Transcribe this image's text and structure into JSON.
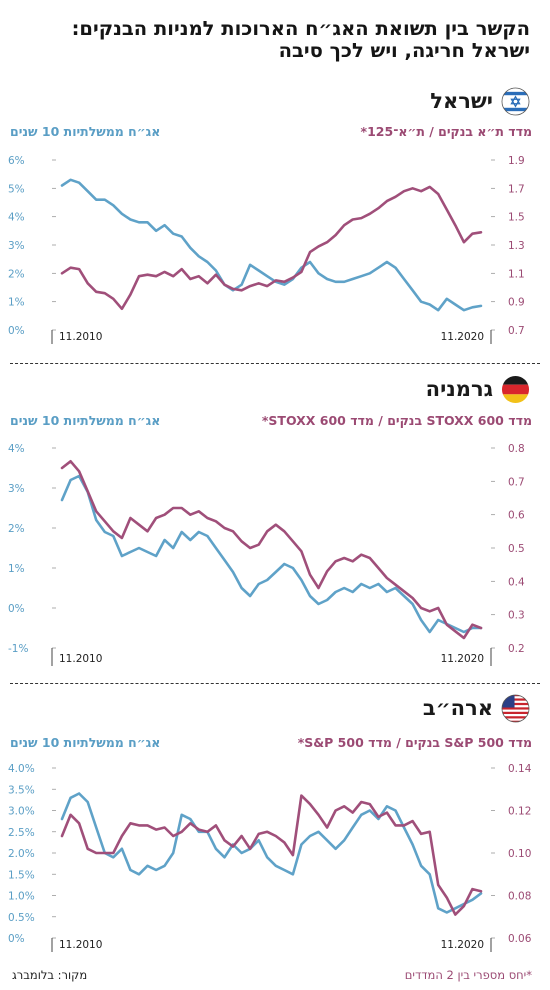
{
  "title_line1": "הקשר בין תשואת האג״ח הארוכות למניות הבנקים:",
  "title_line2": "ישראל חריגה, ויש לכך סיבה",
  "colors": {
    "bond": "#5fa2c8",
    "banks": "#a04f7a",
    "axis_right": "#9b4a73",
    "axis_left": "#5a9ec5"
  },
  "footer": {
    "source": "מקור: בלומברג",
    "note": "*יחס מספרי בין 2 המדדים"
  },
  "chart_data": [
    {
      "type": "line",
      "country": "ישראל",
      "flag_icon": "israel-flag-icon",
      "left_axis_title": "אג״ח ממשלתיות 10 שנים",
      "right_axis_title": "מדד ת״א בנקים / ת״א־125*",
      "x_start_label": "11.2010",
      "x_end_label": "11.2020",
      "left_ticks": [
        "6%",
        "5%",
        "4%",
        "3%",
        "2%",
        "1%",
        "0%"
      ],
      "left_lim": [
        0,
        6
      ],
      "right_ticks": [
        "1.9",
        "1.7",
        "1.5",
        "1.3",
        "1.1",
        "0.9",
        "0.7"
      ],
      "right_lim": [
        0.7,
        1.9
      ],
      "series": [
        {
          "axis": "left",
          "color": "bond",
          "values": [
            5.1,
            5.3,
            5.2,
            4.9,
            4.6,
            4.6,
            4.4,
            4.1,
            3.9,
            3.8,
            3.8,
            3.5,
            3.7,
            3.4,
            3.3,
            2.9,
            2.6,
            2.4,
            2.1,
            1.6,
            1.4,
            1.6,
            2.3,
            2.1,
            1.9,
            1.7,
            1.6,
            1.8,
            2.2,
            2.4,
            2.0,
            1.8,
            1.7,
            1.7,
            1.8,
            1.9,
            2.0,
            2.2,
            2.4,
            2.2,
            1.8,
            1.4,
            1.0,
            0.9,
            0.7,
            1.1,
            0.9,
            0.7,
            0.8,
            0.85
          ]
        },
        {
          "axis": "right",
          "color": "banks",
          "values": [
            1.1,
            1.14,
            1.13,
            1.03,
            0.97,
            0.96,
            0.92,
            0.85,
            0.95,
            1.08,
            1.09,
            1.08,
            1.11,
            1.08,
            1.13,
            1.06,
            1.08,
            1.03,
            1.09,
            1.02,
            0.99,
            0.98,
            1.01,
            1.03,
            1.01,
            1.05,
            1.04,
            1.07,
            1.11,
            1.25,
            1.29,
            1.32,
            1.37,
            1.44,
            1.48,
            1.49,
            1.52,
            1.56,
            1.61,
            1.64,
            1.68,
            1.7,
            1.68,
            1.71,
            1.66,
            1.55,
            1.44,
            1.32,
            1.38,
            1.39
          ]
        }
      ]
    },
    {
      "type": "line",
      "country": "גרמניה",
      "flag_icon": "germany-flag-icon",
      "left_axis_title": "אג״ח ממשלתיות 10 שנים",
      "right_axis_title": "מדד STOXX 600 בנקים / מדד STOXX 600*",
      "x_start_label": "11.2010",
      "x_end_label": "11.2020",
      "left_ticks": [
        "4%",
        "3%",
        "2%",
        "1%",
        "0%",
        "-1%"
      ],
      "left_lim": [
        -1,
        4
      ],
      "right_ticks": [
        "0.8",
        "0.7",
        "0.6",
        "0.5",
        "0.4",
        "0.3",
        "0.2"
      ],
      "right_lim": [
        0.2,
        0.8
      ],
      "series": [
        {
          "axis": "left",
          "color": "bond",
          "values": [
            2.7,
            3.2,
            3.3,
            2.9,
            2.2,
            1.9,
            1.8,
            1.3,
            1.4,
            1.5,
            1.4,
            1.3,
            1.7,
            1.5,
            1.9,
            1.7,
            1.9,
            1.8,
            1.5,
            1.2,
            0.9,
            0.5,
            0.3,
            0.6,
            0.7,
            0.9,
            1.1,
            1.0,
            0.7,
            0.3,
            0.1,
            0.2,
            0.4,
            0.5,
            0.4,
            0.6,
            0.5,
            0.6,
            0.4,
            0.5,
            0.3,
            0.1,
            -0.3,
            -0.6,
            -0.3,
            -0.4,
            -0.5,
            -0.6,
            -0.5,
            -0.5
          ]
        },
        {
          "axis": "right",
          "color": "banks",
          "values": [
            0.74,
            0.76,
            0.73,
            0.67,
            0.61,
            0.58,
            0.55,
            0.53,
            0.59,
            0.57,
            0.55,
            0.59,
            0.6,
            0.62,
            0.62,
            0.6,
            0.61,
            0.59,
            0.58,
            0.56,
            0.55,
            0.52,
            0.5,
            0.51,
            0.55,
            0.57,
            0.55,
            0.52,
            0.49,
            0.42,
            0.38,
            0.43,
            0.46,
            0.47,
            0.46,
            0.48,
            0.47,
            0.44,
            0.41,
            0.39,
            0.37,
            0.35,
            0.32,
            0.31,
            0.32,
            0.27,
            0.25,
            0.23,
            0.27,
            0.26
          ]
        }
      ]
    },
    {
      "type": "line",
      "country": "ארה״ב",
      "flag_icon": "usa-flag-icon",
      "left_axis_title": "אג״ח ממשלתיות 10 שנים",
      "right_axis_title": "מדד S&P 500 בנקים / מדד S&P 500*",
      "x_start_label": "11.2010",
      "x_end_label": "11.2020",
      "left_ticks": [
        "4.0%",
        "3.5%",
        "3.0%",
        "2.5%",
        "2.0%",
        "1.5%",
        "1.0%",
        "0.5%",
        "0%"
      ],
      "left_lim": [
        0,
        4
      ],
      "right_ticks": [
        "0.14",
        "0.12",
        "0.10",
        "0.08",
        "0.06"
      ],
      "right_lim": [
        0.06,
        0.14
      ],
      "series": [
        {
          "axis": "left",
          "color": "bond",
          "values": [
            2.8,
            3.3,
            3.4,
            3.2,
            2.6,
            2.0,
            1.9,
            2.1,
            1.6,
            1.5,
            1.7,
            1.6,
            1.7,
            2.0,
            2.9,
            2.8,
            2.5,
            2.5,
            2.1,
            1.9,
            2.2,
            2.0,
            2.1,
            2.3,
            1.9,
            1.7,
            1.6,
            1.5,
            2.2,
            2.4,
            2.5,
            2.3,
            2.1,
            2.3,
            2.6,
            2.9,
            3.0,
            2.8,
            3.1,
            3.0,
            2.6,
            2.2,
            1.7,
            1.5,
            0.7,
            0.6,
            0.7,
            0.8,
            0.9,
            1.05
          ]
        },
        {
          "axis": "right",
          "color": "banks",
          "values": [
            0.108,
            0.118,
            0.114,
            0.102,
            0.1,
            0.1,
            0.1,
            0.108,
            0.114,
            0.113,
            0.113,
            0.111,
            0.112,
            0.108,
            0.11,
            0.114,
            0.111,
            0.11,
            0.113,
            0.106,
            0.103,
            0.108,
            0.102,
            0.109,
            0.11,
            0.108,
            0.105,
            0.099,
            0.127,
            0.123,
            0.118,
            0.112,
            0.12,
            0.122,
            0.119,
            0.124,
            0.123,
            0.117,
            0.119,
            0.113,
            0.113,
            0.115,
            0.109,
            0.11,
            0.085,
            0.079,
            0.071,
            0.075,
            0.083,
            0.082
          ]
        }
      ]
    }
  ]
}
